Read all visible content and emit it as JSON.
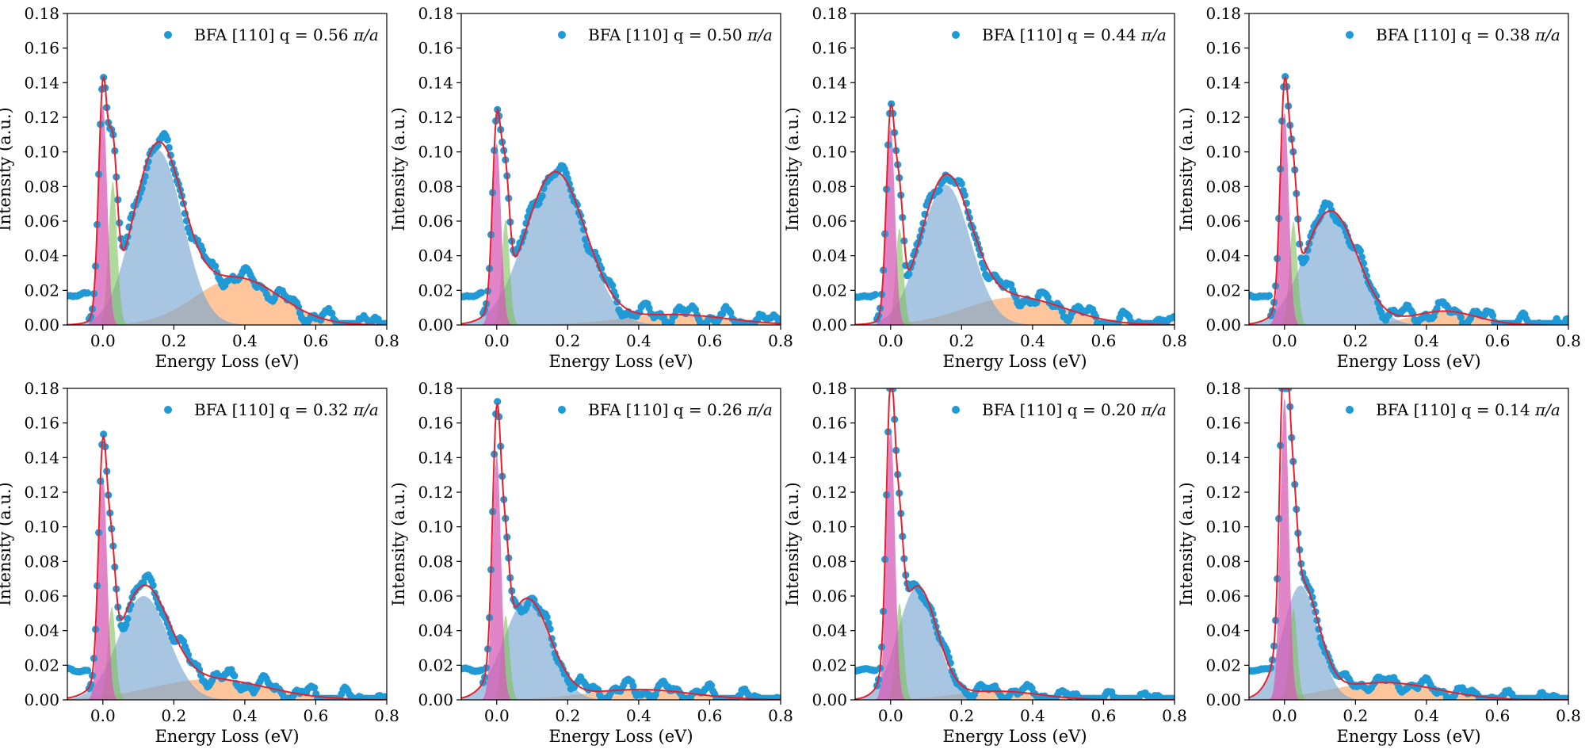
{
  "figure": {
    "colors": {
      "data_points": "#1f9ad6",
      "fit_line": "#e8202e",
      "elastic": "#d85bb5",
      "phonon": "#7fbf5a",
      "main_peak": "#7aa8d2",
      "broad": "#ffa05a"
    },
    "marker_icon": "filled-circle"
  },
  "chart_data": [
    {
      "type": "line",
      "legend": {
        "prefix": "BFA [110] q = ",
        "q": "0.56",
        "unit": "π/a",
        "placement": "top-right"
      },
      "xlabel": "Energy Loss (eV)",
      "ylabel": "Intensity (a.u.)",
      "xlim": [
        -0.1,
        0.8
      ],
      "ylim": [
        0,
        0.18
      ],
      "xticks": [
        "0.0",
        "0.2",
        "0.4",
        "0.6",
        "0.8"
      ],
      "yticks": [
        "0.00",
        "0.02",
        "0.04",
        "0.06",
        "0.08",
        "0.10",
        "0.12",
        "0.14",
        "0.16",
        "0.18"
      ],
      "grid": false,
      "components": {
        "elastic": [
          0.128,
          0.0,
          0.012
        ],
        "phonon": [
          0.083,
          0.028,
          0.012
        ],
        "main": [
          0.101,
          0.155,
          0.07
        ],
        "broad": [
          0.027,
          0.38,
          0.12
        ]
      },
      "noise": 0.004
    },
    {
      "type": "line",
      "legend": {
        "prefix": "BFA [110] q = ",
        "q": "0.50",
        "unit": "π/a",
        "placement": "top-right"
      },
      "xlabel": "Energy Loss (eV)",
      "ylabel": "Intensity (a.u.)",
      "xlim": [
        -0.1,
        0.8
      ],
      "ylim": [
        0,
        0.18
      ],
      "xticks": [
        "0.0",
        "0.2",
        "0.4",
        "0.6",
        "0.8"
      ],
      "yticks": [
        "0.00",
        "0.02",
        "0.04",
        "0.06",
        "0.08",
        "0.10",
        "0.12",
        "0.14",
        "0.16",
        "0.18"
      ],
      "grid": false,
      "components": {
        "elastic": [
          0.105,
          0.0,
          0.012
        ],
        "phonon": [
          0.061,
          0.025,
          0.011
        ],
        "main": [
          0.088,
          0.165,
          0.085
        ],
        "broad": [
          0.006,
          0.5,
          0.15
        ]
      },
      "noise": 0.004
    },
    {
      "type": "line",
      "legend": {
        "prefix": "BFA [110] q = ",
        "q": "0.44",
        "unit": "π/a",
        "placement": "top-right"
      },
      "xlabel": "Energy Loss (eV)",
      "ylabel": "Intensity (a.u.)",
      "xlim": [
        -0.1,
        0.8
      ],
      "ylim": [
        0,
        0.18
      ],
      "xticks": [
        "0.0",
        "0.2",
        "0.4",
        "0.6",
        "0.8"
      ],
      "yticks": [
        "0.00",
        "0.02",
        "0.04",
        "0.06",
        "0.08",
        "0.10",
        "0.12",
        "0.14",
        "0.16",
        "0.18"
      ],
      "grid": false,
      "components": {
        "elastic": [
          0.115,
          0.0,
          0.012
        ],
        "phonon": [
          0.056,
          0.025,
          0.011
        ],
        "main": [
          0.081,
          0.155,
          0.07
        ],
        "broad": [
          0.016,
          0.35,
          0.14
        ]
      },
      "noise": 0.004
    },
    {
      "type": "line",
      "legend": {
        "prefix": "BFA [110] q = ",
        "q": "0.38",
        "unit": "π/a",
        "placement": "top-right"
      },
      "xlabel": "Energy Loss (eV)",
      "ylabel": "Intensity (a.u.)",
      "xlim": [
        -0.1,
        0.8
      ],
      "ylim": [
        0,
        0.18
      ],
      "xticks": [
        "0.0",
        "0.2",
        "0.4",
        "0.6",
        "0.8"
      ],
      "yticks": [
        "0.00",
        "0.02",
        "0.04",
        "0.06",
        "0.08",
        "0.10",
        "0.12",
        "0.14",
        "0.16",
        "0.18"
      ],
      "grid": false,
      "components": {
        "elastic": [
          0.123,
          0.0,
          0.012
        ],
        "phonon": [
          0.06,
          0.025,
          0.011
        ],
        "main": [
          0.066,
          0.13,
          0.075
        ],
        "broad": [
          0.008,
          0.45,
          0.09
        ]
      },
      "noise": 0.004
    },
    {
      "type": "line",
      "legend": {
        "prefix": "BFA [110] q = ",
        "q": "0.32",
        "unit": "π/a",
        "placement": "top-right"
      },
      "xlabel": "Energy Loss (eV)",
      "ylabel": "Intensity (a.u.)",
      "xlim": [
        -0.1,
        0.8
      ],
      "ylim": [
        0,
        0.18
      ],
      "xticks": [
        "0.0",
        "0.2",
        "0.4",
        "0.6",
        "0.8"
      ],
      "yticks": [
        "0.00",
        "0.02",
        "0.04",
        "0.06",
        "0.08",
        "0.10",
        "0.12",
        "0.14",
        "0.16",
        "0.18"
      ],
      "grid": false,
      "components": {
        "elastic": [
          0.13,
          0.0,
          0.012
        ],
        "phonon": [
          0.054,
          0.025,
          0.011
        ],
        "main": [
          0.06,
          0.115,
          0.07
        ],
        "broad": [
          0.012,
          0.3,
          0.16
        ]
      },
      "noise": 0.004
    },
    {
      "type": "line",
      "legend": {
        "prefix": "BFA [110] q = ",
        "q": "0.26",
        "unit": "π/a",
        "placement": "top-right"
      },
      "xlabel": "Energy Loss (eV)",
      "ylabel": "Intensity (a.u.)",
      "xlim": [
        -0.1,
        0.8
      ],
      "ylim": [
        0,
        0.18
      ],
      "xticks": [
        "0.0",
        "0.2",
        "0.4",
        "0.6",
        "0.8"
      ],
      "yticks": [
        "0.00",
        "0.02",
        "0.04",
        "0.06",
        "0.08",
        "0.10",
        "0.12",
        "0.14",
        "0.16",
        "0.18"
      ],
      "grid": false,
      "components": {
        "elastic": [
          0.142,
          0.0,
          0.012
        ],
        "phonon": [
          0.049,
          0.025,
          0.011
        ],
        "main": [
          0.058,
          0.085,
          0.065
        ],
        "broad": [
          0.006,
          0.4,
          0.15
        ]
      },
      "noise": 0.004
    },
    {
      "type": "line",
      "legend": {
        "prefix": "BFA [110] q = ",
        "q": "0.20",
        "unit": "π/a",
        "placement": "top-right"
      },
      "xlabel": "Energy Loss (eV)",
      "ylabel": "Intensity (a.u.)",
      "xlim": [
        -0.1,
        0.8
      ],
      "ylim": [
        0,
        0.18
      ],
      "xticks": [
        "0.0",
        "0.2",
        "0.4",
        "0.6",
        "0.8"
      ],
      "yticks": [
        "0.00",
        "0.02",
        "0.04",
        "0.06",
        "0.08",
        "0.10",
        "0.12",
        "0.14",
        "0.16",
        "0.18"
      ],
      "grid": false,
      "components": {
        "elastic": [
          0.158,
          0.0,
          0.012
        ],
        "phonon": [
          0.056,
          0.025,
          0.011
        ],
        "main": [
          0.065,
          0.075,
          0.055
        ],
        "broad": [
          0.005,
          0.3,
          0.12
        ]
      },
      "noise": 0.003
    },
    {
      "type": "line",
      "legend": {
        "prefix": "BFA [110] q = ",
        "q": "0.14",
        "unit": "π/a",
        "placement": "top-right"
      },
      "xlabel": "Energy Loss (eV)",
      "ylabel": "Intensity (a.u.)",
      "xlim": [
        -0.1,
        0.8
      ],
      "ylim": [
        0,
        0.18
      ],
      "xticks": [
        "0.0",
        "0.2",
        "0.4",
        "0.6",
        "0.8"
      ],
      "yticks": [
        "0.00",
        "0.02",
        "0.04",
        "0.06",
        "0.08",
        "0.10",
        "0.12",
        "0.14",
        "0.16",
        "0.18"
      ],
      "grid": false,
      "components": {
        "elastic": [
          0.175,
          0.0,
          0.012
        ],
        "phonon": [
          0.053,
          0.025,
          0.011
        ],
        "main": [
          0.066,
          0.045,
          0.05
        ],
        "broad": [
          0.01,
          0.28,
          0.15
        ]
      },
      "noise": 0.003
    }
  ]
}
